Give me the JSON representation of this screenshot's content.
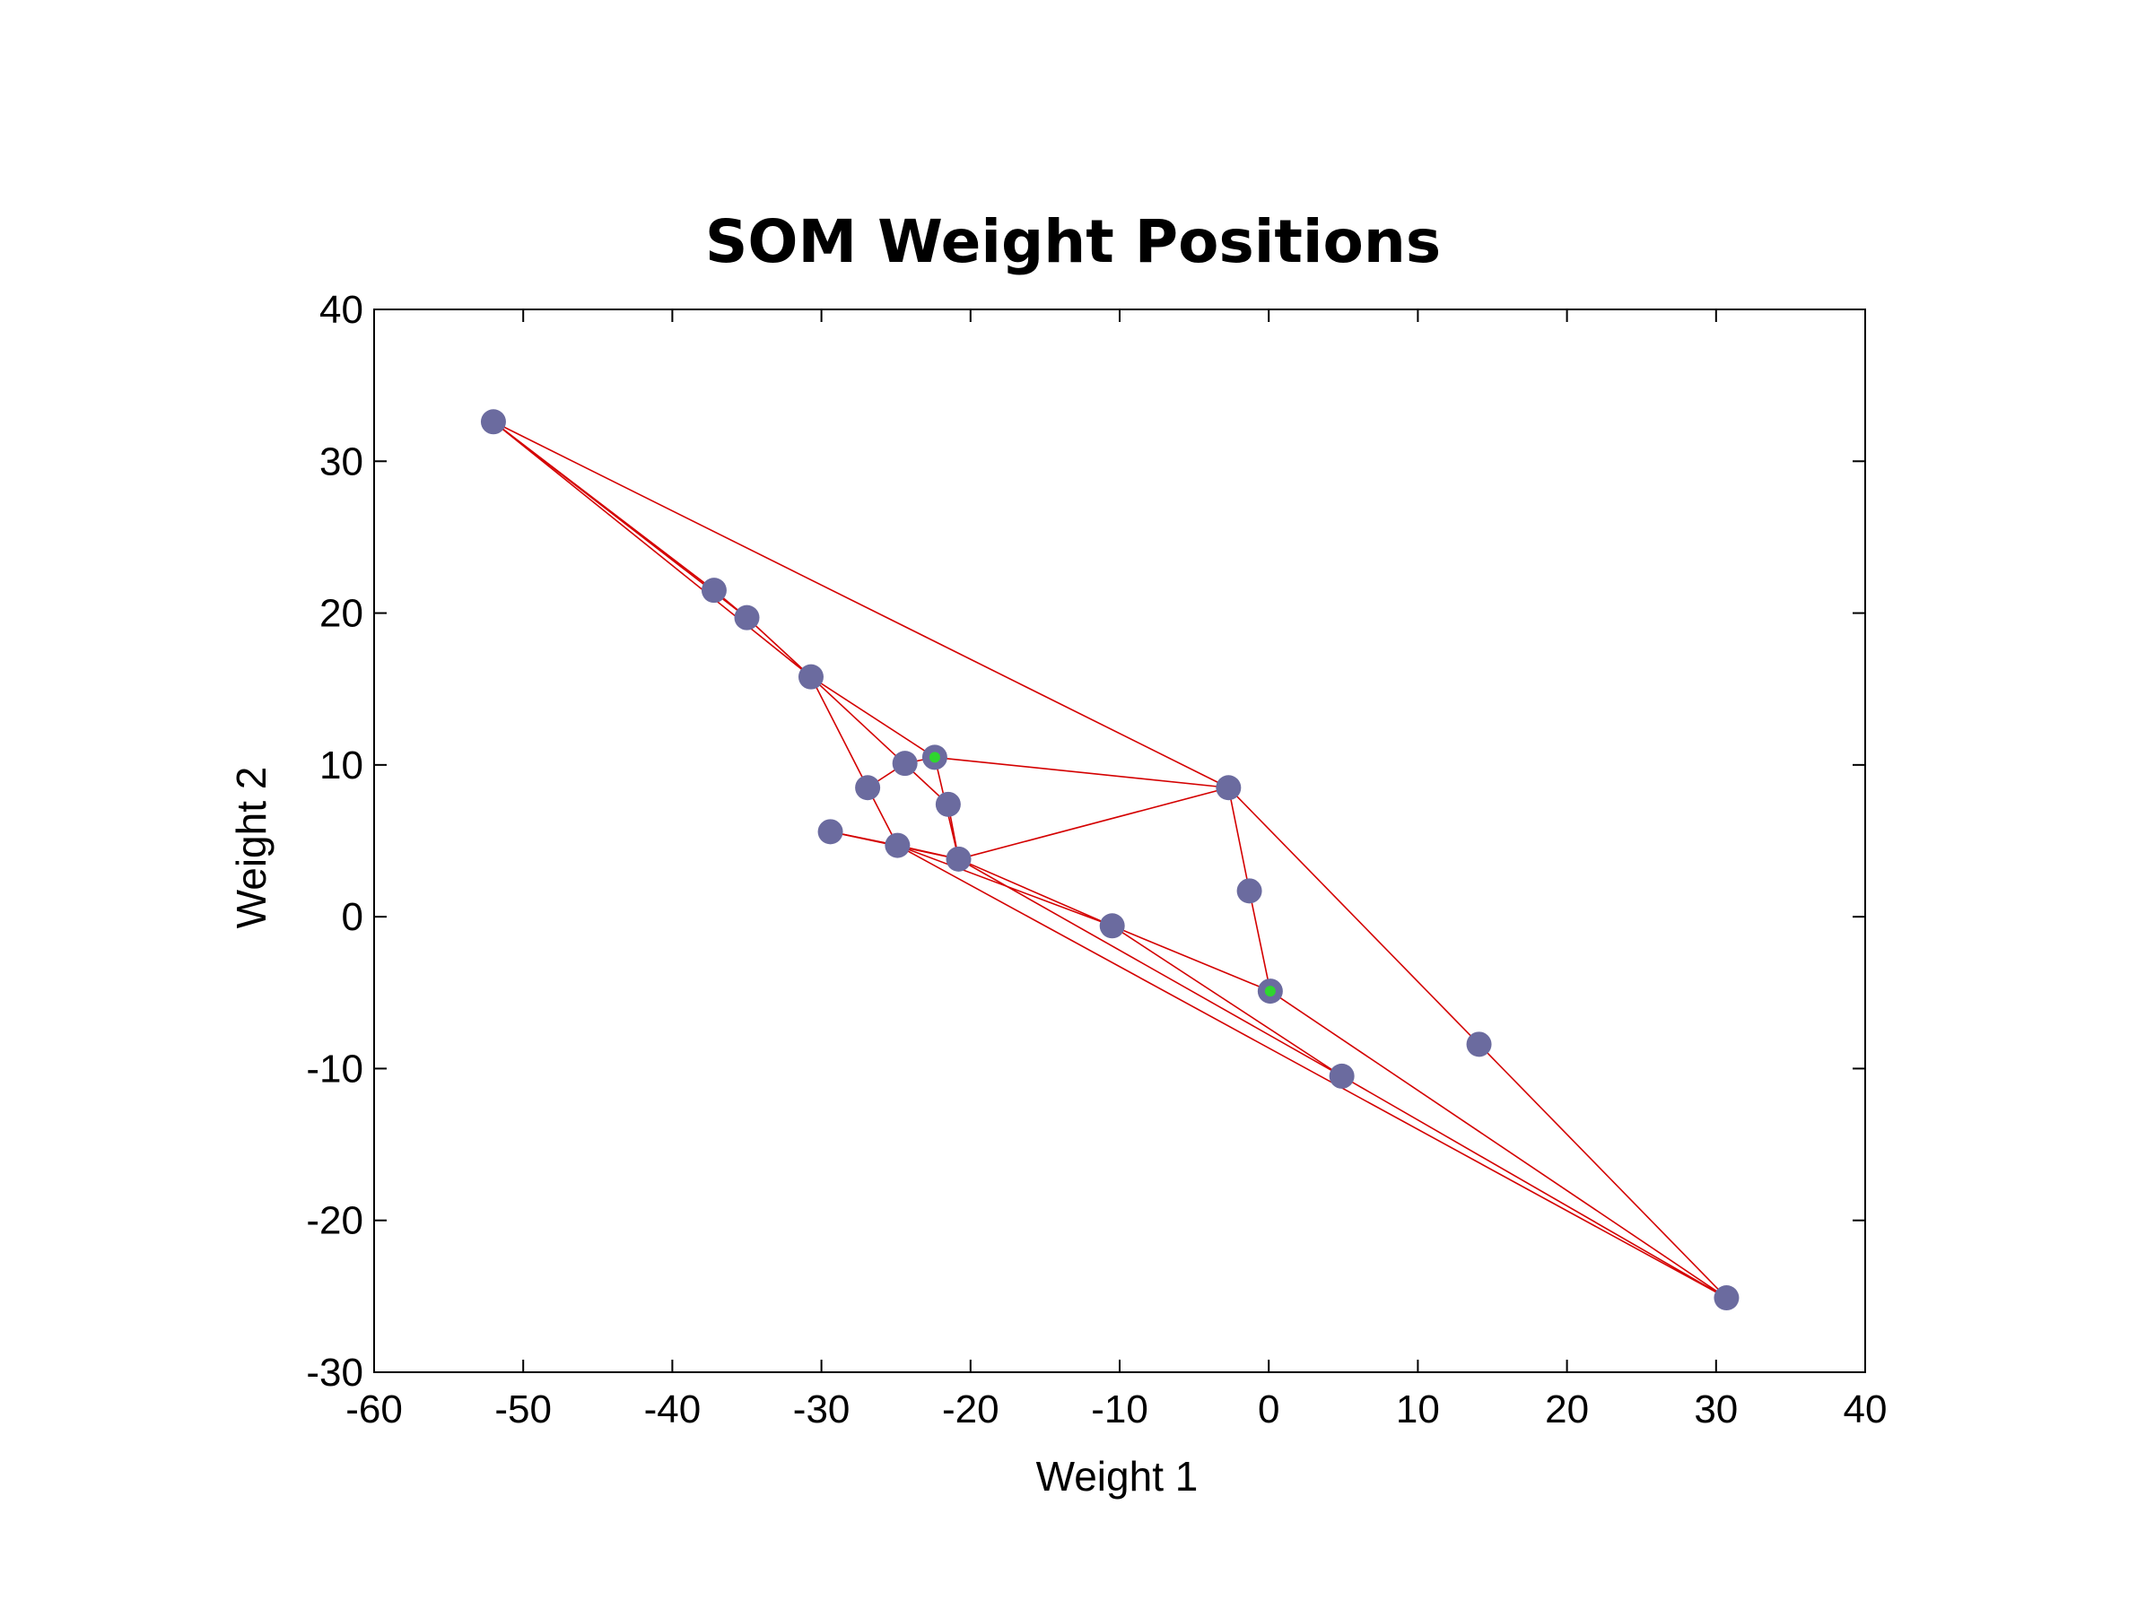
{
  "chart_data": {
    "type": "scatter",
    "title": "SOM Weight Positions",
    "xlabel": "Weight 1",
    "ylabel": "Weight 2",
    "xlim": [
      -60,
      40
    ],
    "ylim": [
      -30,
      40
    ],
    "xticks": [
      -60,
      -50,
      -40,
      -30,
      -20,
      -10,
      0,
      10,
      20,
      30,
      40
    ],
    "yticks": [
      -30,
      -20,
      -10,
      0,
      10,
      20,
      30,
      40
    ],
    "grid": false,
    "colors": {
      "node": "#6b6b9f",
      "edge": "#d40000",
      "highlight": "#2fd62f",
      "axis": "#000000"
    },
    "nodes": [
      {
        "id": 0,
        "x": -52.0,
        "y": 32.6
      },
      {
        "id": 1,
        "x": -37.2,
        "y": 21.5
      },
      {
        "id": 2,
        "x": -35.0,
        "y": 19.7
      },
      {
        "id": 3,
        "x": -30.7,
        "y": 15.8
      },
      {
        "id": 4,
        "x": -24.4,
        "y": 10.1
      },
      {
        "id": 5,
        "x": -22.4,
        "y": 10.5,
        "highlight": true
      },
      {
        "id": 6,
        "x": -26.9,
        "y": 8.5
      },
      {
        "id": 7,
        "x": -21.5,
        "y": 7.4
      },
      {
        "id": 8,
        "x": -2.7,
        "y": 8.5
      },
      {
        "id": 9,
        "x": -29.4,
        "y": 5.6
      },
      {
        "id": 10,
        "x": -24.9,
        "y": 4.7
      },
      {
        "id": 11,
        "x": -20.8,
        "y": 3.8
      },
      {
        "id": 12,
        "x": -1.3,
        "y": 1.7
      },
      {
        "id": 13,
        "x": -10.5,
        "y": -0.6
      },
      {
        "id": 14,
        "x": 0.1,
        "y": -4.9,
        "highlight": true
      },
      {
        "id": 15,
        "x": 14.1,
        "y": -8.4
      },
      {
        "id": 16,
        "x": 4.9,
        "y": -10.5
      },
      {
        "id": 17,
        "x": 30.7,
        "y": -25.1
      }
    ],
    "edges": [
      [
        0,
        1
      ],
      [
        1,
        2
      ],
      [
        0,
        2
      ],
      [
        0,
        3
      ],
      [
        2,
        3
      ],
      [
        0,
        8
      ],
      [
        3,
        5
      ],
      [
        3,
        6
      ],
      [
        3,
        7
      ],
      [
        6,
        4
      ],
      [
        4,
        5
      ],
      [
        6,
        10
      ],
      [
        5,
        8
      ],
      [
        5,
        11
      ],
      [
        7,
        11
      ],
      [
        8,
        11
      ],
      [
        8,
        12
      ],
      [
        8,
        15
      ],
      [
        12,
        14
      ],
      [
        9,
        10
      ],
      [
        9,
        11
      ],
      [
        10,
        11
      ],
      [
        10,
        13
      ],
      [
        11,
        13
      ],
      [
        11,
        16
      ],
      [
        13,
        16
      ],
      [
        13,
        14
      ],
      [
        14,
        17
      ],
      [
        15,
        17
      ],
      [
        16,
        17
      ],
      [
        10,
        17
      ]
    ]
  }
}
